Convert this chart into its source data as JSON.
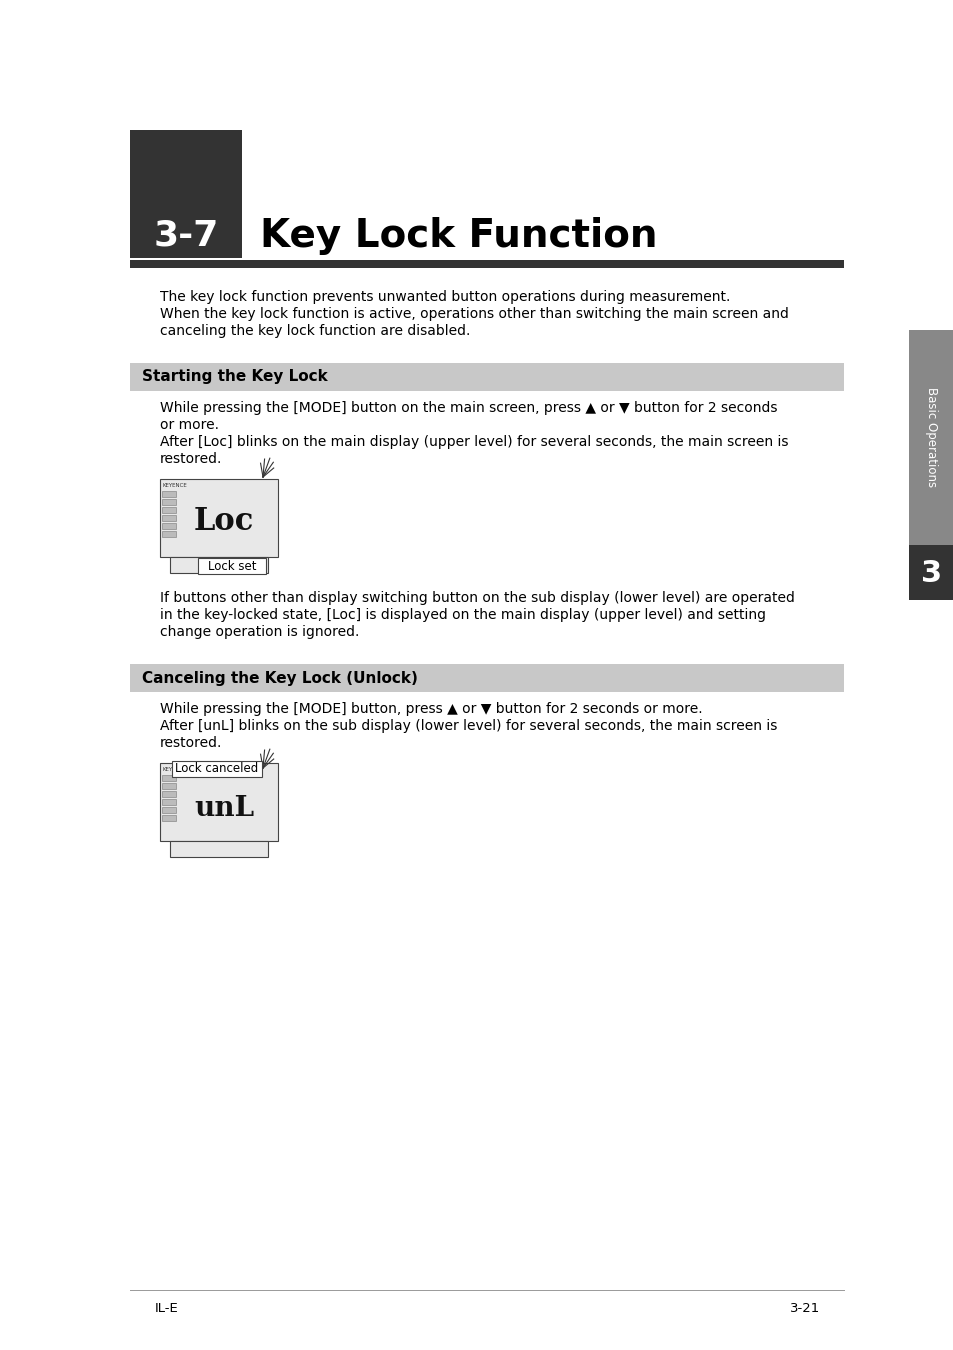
{
  "page_bg": "#ffffff",
  "header_box_color": "#333333",
  "header_num": "3-7",
  "header_title": "Key Lock Function",
  "section1_bg": "#c8c8c8",
  "section1_title": "Starting the Key Lock",
  "section2_bg": "#c8c8c8",
  "section2_title": "Canceling the Key Lock (Unlock)",
  "intro_text": "The key lock function prevents unwanted button operations during measurement.\nWhen the key lock function is active, operations other than switching the main screen and\ncanceling the key lock function are disabled.",
  "section1_body1_part1": "While pressing the [MODE] button on the main screen, press ▲ or ▼ button for 2 seconds",
  "section1_body1_part2": "or more.",
  "section1_body1_part3": "After [Loc] blinks on the main display (upper level) for several seconds, the main screen is",
  "section1_body1_part4": "restored.",
  "section1_body2_part1": "If buttons other than display switching button on the sub display (lower level) are operated",
  "section1_body2_part2": "in the key-locked state, [Loc] is displayed on the main display (upper level) and setting",
  "section1_body2_part3": "change operation is ignored.",
  "section2_body1_part1": "While pressing the [MODE] button, press ▲ or ▼ button for 2 seconds or more.",
  "section2_body1_part2": "After [unL] blinks on the sub display (lower level) for several seconds, the main screen is",
  "section2_body1_part3": "restored.",
  "sidebar_label": "Basic Operations",
  "sidebar_num": "3",
  "footer_left": "IL-E",
  "footer_right": "3-21",
  "text_color": "#000000",
  "sidebar_bg": "#333333",
  "sidebar_text_color": "#ffffff",
  "sidebar_tab_color": "#555555"
}
